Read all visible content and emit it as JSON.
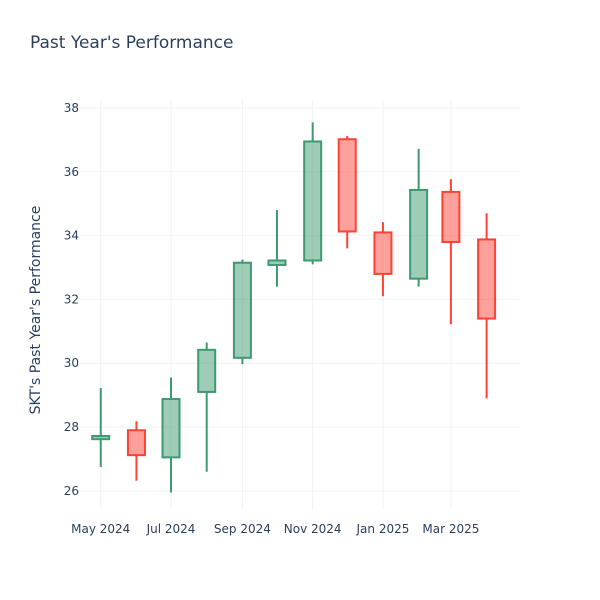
{
  "chart_data": {
    "type": "candlestick",
    "title": "Past Year's Performance",
    "xlabel": "",
    "ylabel": "SKT's Past Year's Performance",
    "x_tick_labels": [
      "May 2024",
      "Jul 2024",
      "Sep 2024",
      "Nov 2024",
      "Jan 2025",
      "Mar 2025"
    ],
    "x_tick_dates": [
      "2024-05-01",
      "2024-07-01",
      "2024-09-01",
      "2024-11-01",
      "2025-01-01",
      "2025-03-01"
    ],
    "x_range": [
      "2024-04-13",
      "2025-04-30"
    ],
    "y_ticks": [
      26,
      28,
      30,
      32,
      34,
      36,
      38
    ],
    "ylim": [
      25.4,
      38.25
    ],
    "grid": true,
    "colors": {
      "increasing_line": "#3d9970",
      "increasing_fill": "rgba(61,153,112,0.5)",
      "decreasing_line": "#ff4136",
      "decreasing_fill": "rgba(255,65,54,0.5)",
      "grid": "#f0f2f6",
      "text": "#2a3f5f"
    },
    "candles": [
      {
        "date": "2024-05-01",
        "open": 27.62,
        "high": 29.22,
        "low": 26.75,
        "close": 27.72
      },
      {
        "date": "2024-06-01",
        "open": 27.9,
        "high": 28.18,
        "low": 26.32,
        "close": 27.12
      },
      {
        "date": "2024-07-01",
        "open": 27.05,
        "high": 29.55,
        "low": 25.95,
        "close": 28.88
      },
      {
        "date": "2024-08-01",
        "open": 29.1,
        "high": 30.65,
        "low": 26.6,
        "close": 30.42
      },
      {
        "date": "2024-09-01",
        "open": 30.17,
        "high": 33.25,
        "low": 29.97,
        "close": 33.15
      },
      {
        "date": "2024-10-01",
        "open": 33.08,
        "high": 34.8,
        "low": 32.4,
        "close": 33.22
      },
      {
        "date": "2024-11-01",
        "open": 33.22,
        "high": 37.55,
        "low": 33.1,
        "close": 36.95
      },
      {
        "date": "2024-12-01",
        "open": 37.02,
        "high": 37.12,
        "low": 33.6,
        "close": 34.13
      },
      {
        "date": "2025-01-01",
        "open": 34.1,
        "high": 34.42,
        "low": 32.1,
        "close": 32.8
      },
      {
        "date": "2025-02-01",
        "open": 32.65,
        "high": 36.72,
        "low": 32.4,
        "close": 35.43
      },
      {
        "date": "2025-03-01",
        "open": 35.37,
        "high": 35.77,
        "low": 31.22,
        "close": 33.8
      },
      {
        "date": "2025-04-01",
        "open": 33.88,
        "high": 34.7,
        "low": 28.9,
        "close": 31.4
      }
    ]
  }
}
